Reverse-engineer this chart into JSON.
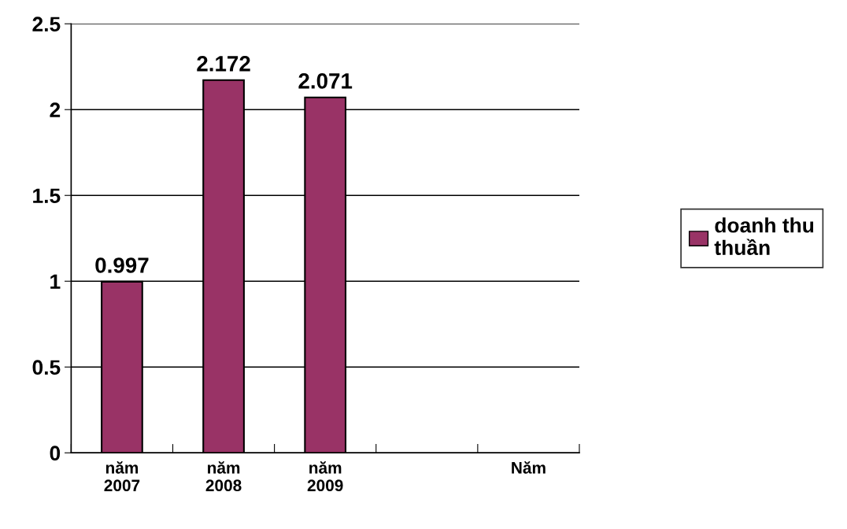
{
  "chart_data": {
    "type": "bar",
    "categories": [
      "năm 2007",
      "năm 2008",
      "năm 2009",
      null,
      "Năm"
    ],
    "series": [
      {
        "name": "doanh thu thuần",
        "color": "#993366",
        "values": [
          0.997,
          2.172,
          2.071,
          null,
          null
        ]
      }
    ],
    "ylim": [
      0,
      2.5
    ],
    "yticks": [
      0,
      0.5,
      1,
      1.5,
      2,
      2.5
    ],
    "grid": "y",
    "legend": "right",
    "data_labels": true
  }
}
